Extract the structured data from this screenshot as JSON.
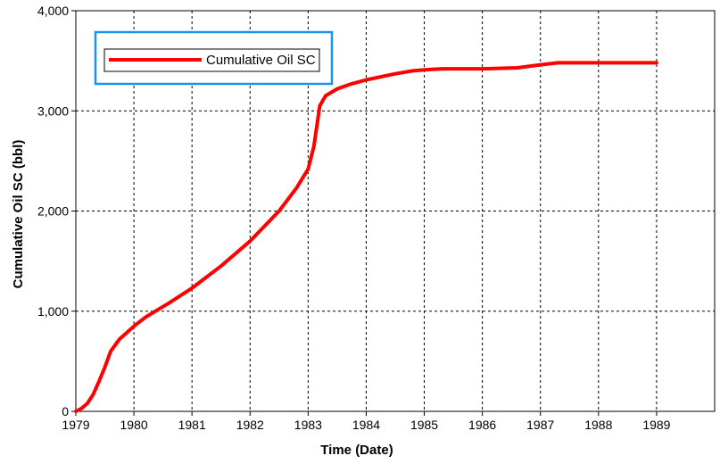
{
  "chart_data": {
    "type": "line",
    "title": "",
    "xlabel": "Time (Date)",
    "ylabel": "Cumulative Oil SC (bbl)",
    "xlim": [
      1979,
      1990
    ],
    "ylim": [
      0,
      4000
    ],
    "x_ticks": [
      "1979",
      "1980",
      "1981",
      "1982",
      "1983",
      "1984",
      "1985",
      "1986",
      "1987",
      "1988",
      "1989"
    ],
    "y_ticks": [
      "0",
      "1,000",
      "2,000",
      "3,000",
      "4,000"
    ],
    "grid": true,
    "legend_position": "top-left",
    "series": [
      {
        "name": "Cumulative Oil SC",
        "color": "#ff0000",
        "x": [
          1979.0,
          1979.1,
          1979.2,
          1979.3,
          1979.4,
          1979.5,
          1979.6,
          1979.75,
          1980.0,
          1980.2,
          1980.4,
          1980.6,
          1981.0,
          1981.5,
          1982.0,
          1982.5,
          1982.8,
          1983.0,
          1983.1,
          1983.2,
          1983.3,
          1983.5,
          1983.75,
          1984.0,
          1984.5,
          1984.8,
          1985.0,
          1985.3,
          1985.5,
          1986.0,
          1986.6,
          1987.0,
          1987.3,
          1988.0,
          1988.5,
          1989.0
        ],
        "y": [
          0,
          30,
          80,
          170,
          300,
          440,
          600,
          720,
          850,
          940,
          1010,
          1080,
          1230,
          1450,
          1700,
          2000,
          2230,
          2420,
          2650,
          3050,
          3150,
          3220,
          3270,
          3310,
          3370,
          3400,
          3410,
          3420,
          3420,
          3420,
          3430,
          3460,
          3480,
          3480,
          3480,
          3480
        ]
      }
    ]
  }
}
